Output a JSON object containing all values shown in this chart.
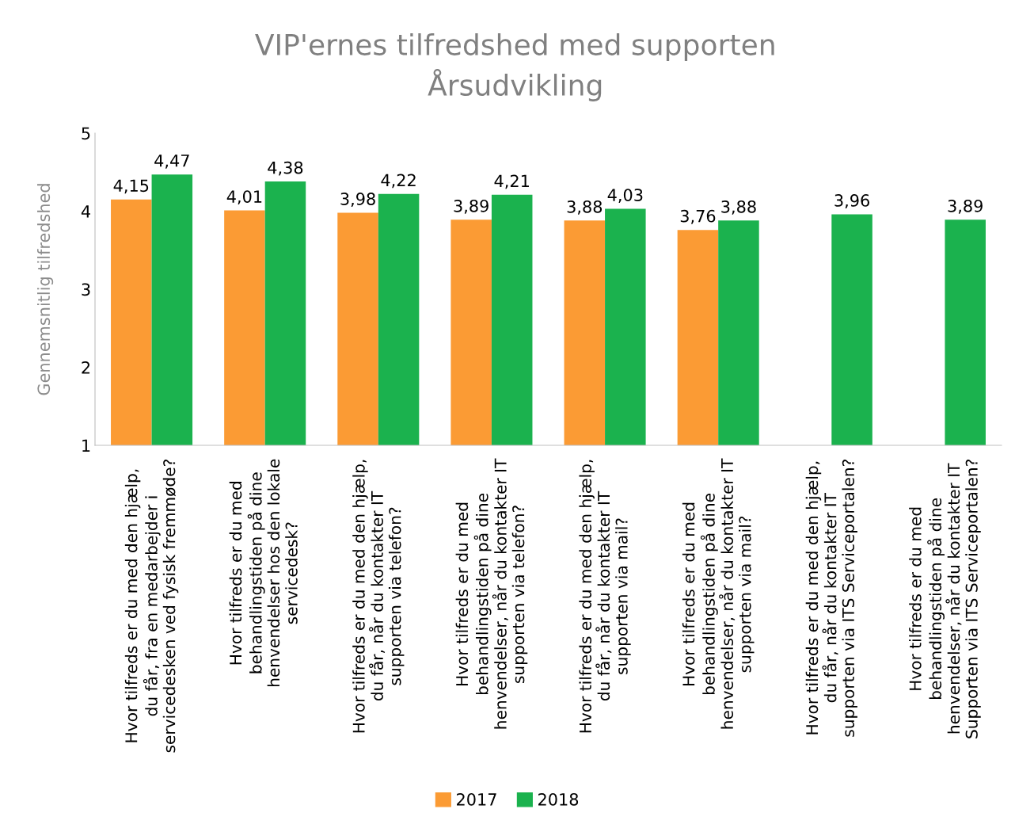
{
  "chart_data": {
    "type": "bar",
    "title": "VIP'ernes tilfredshed med supporten\nÅrsudvikling",
    "ylabel": "Gennemsnitlig tilfredshed",
    "categories": [
      "Hvor tilfreds er du med den hjælp,\ndu får, fra en medarbejder i\nservicedesken ved fysisk fremmøde?",
      "Hvor tilfreds er du med\nbehandlingstiden på dine\nhenvendelser hos den lokale\nservicedesk?",
      "Hvor tilfreds er du med den hjælp,\ndu får, når du kontakter IT\nsupporten via telefon?",
      "Hvor tilfreds er du med\nbehandlingstiden på dine\nhenvendelser, når du kontakter IT\nsupporten via telefon?",
      "Hvor tilfreds er du med den hjælp,\ndu får, når du kontakter IT\nsupporten via mail?",
      "Hvor tilfreds er du med\nbehandlingstiden på dine\nhenvendelser, når du kontakter IT\nsupporten via mail?",
      "Hvor tilfreds er du med den hjælp,\ndu får, når du kontakter IT\nsupporten via ITS Serviceportalen?",
      "Hvor tilfreds er du med\nbehandlingstiden på dine\nhenvendelser, når du kontakter IT\nSupporten via ITS Serviceportalen?"
    ],
    "series": [
      {
        "name": "2017",
        "color": "#fb9b34",
        "values": [
          4.15,
          4.01,
          3.98,
          3.89,
          3.88,
          3.76,
          null,
          null
        ],
        "value_labels": [
          "4,15",
          "4,01",
          "3,98",
          "3,89",
          "3,88",
          "3,76",
          null,
          null
        ]
      },
      {
        "name": "2018",
        "color": "#1bb24e",
        "values": [
          4.47,
          4.38,
          4.22,
          4.21,
          4.03,
          3.88,
          3.96,
          3.89
        ],
        "value_labels": [
          "4,47",
          "4,38",
          "4,22",
          "4,21",
          "4,03",
          "3,88",
          "3,96",
          "3,89"
        ]
      }
    ],
    "ylim": [
      1,
      5
    ],
    "yticks": [
      1,
      2,
      3,
      4,
      5
    ],
    "grid": false,
    "legend": "bottom"
  }
}
